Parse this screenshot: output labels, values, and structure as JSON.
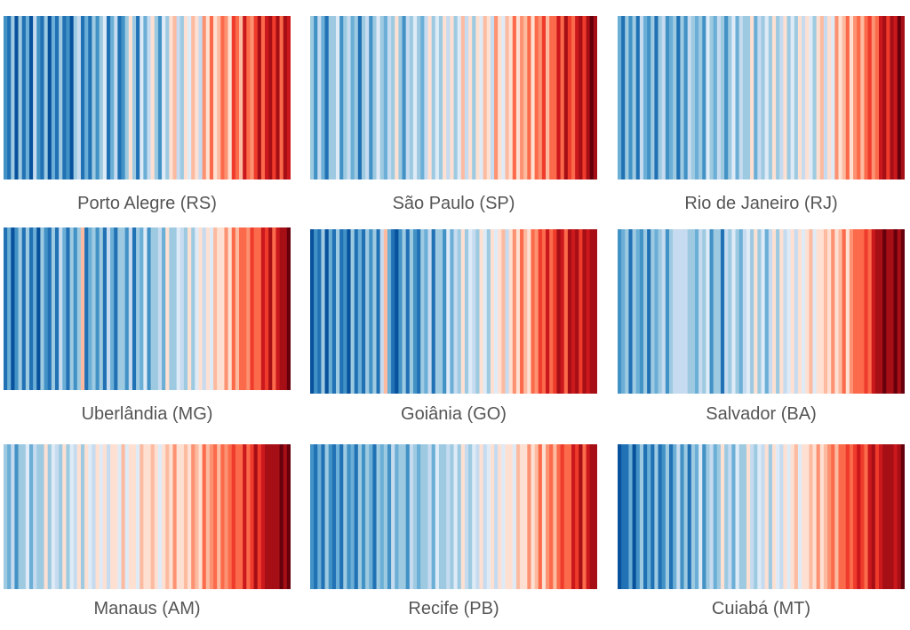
{
  "chart_data": [
    {
      "type": "heatmap",
      "title": "Porto Alegre (RS)",
      "values": [
        0.2,
        0.1,
        0.35,
        0.05,
        0.3,
        0.15,
        0.25,
        0.05,
        0.4,
        0.2,
        0.1,
        0.3,
        0.05,
        0.25,
        0.15,
        0.35,
        0.1,
        0.2,
        0.05,
        0.3,
        0.4,
        0.15,
        0.25,
        0.1,
        0.35,
        0.2,
        0.3,
        0.45,
        0.15,
        0.25,
        0.4,
        0.1,
        0.2,
        0.35,
        0.5,
        0.3,
        0.15,
        0.45,
        0.25,
        0.4,
        0.55,
        0.3,
        0.2,
        0.45,
        0.35,
        0.5,
        0.6,
        0.4,
        0.3,
        0.55,
        0.45,
        0.6,
        0.5,
        0.4,
        0.65,
        0.55,
        0.7,
        0.5,
        0.6,
        0.75,
        0.65,
        0.55,
        0.8,
        0.7,
        0.6,
        0.85,
        0.75,
        0.65,
        0.8,
        0.9,
        0.7,
        0.85,
        0.95,
        0.8,
        0.9,
        0.75,
        0.95,
        0.85
      ]
    },
    {
      "type": "heatmap",
      "title": "São Paulo (SP)",
      "values": [
        0.3,
        0.2,
        0.4,
        0.25,
        0.15,
        0.35,
        0.3,
        0.45,
        0.2,
        0.3,
        0.4,
        0.25,
        0.35,
        0.15,
        0.3,
        0.4,
        0.2,
        0.35,
        0.45,
        0.3,
        0.25,
        0.4,
        0.3,
        0.5,
        0.35,
        0.2,
        0.4,
        0.3,
        0.45,
        0.35,
        0.25,
        0.4,
        0.5,
        0.3,
        0.45,
        0.35,
        0.5,
        0.4,
        0.55,
        0.3,
        0.45,
        0.6,
        0.4,
        0.5,
        0.35,
        0.55,
        0.45,
        0.6,
        0.5,
        0.4,
        0.65,
        0.5,
        0.45,
        0.6,
        0.55,
        0.7,
        0.5,
        0.65,
        0.6,
        0.75,
        0.55,
        0.7,
        0.65,
        0.8,
        0.6,
        0.75,
        0.7,
        0.85,
        0.75,
        0.9,
        0.8,
        0.7,
        0.85,
        0.95,
        0.8,
        0.9,
        1.0,
        0.95
      ]
    },
    {
      "type": "heatmap",
      "title": "Rio de Janeiro (RJ)",
      "values": [
        0.25,
        0.15,
        0.35,
        0.2,
        0.3,
        0.1,
        0.4,
        0.25,
        0.2,
        0.35,
        0.15,
        0.3,
        0.4,
        0.2,
        0.25,
        0.35,
        0.15,
        0.3,
        0.2,
        0.4,
        0.3,
        0.25,
        0.35,
        0.2,
        0.45,
        0.3,
        0.25,
        0.4,
        0.35,
        0.2,
        0.3,
        0.45,
        0.25,
        0.4,
        0.35,
        0.3,
        0.5,
        0.25,
        0.4,
        0.3,
        0.45,
        0.35,
        0.55,
        0.3,
        0.4,
        0.5,
        0.35,
        0.45,
        0.3,
        0.5,
        0.4,
        0.55,
        0.45,
        0.35,
        0.5,
        0.6,
        0.4,
        0.55,
        0.45,
        0.65,
        0.5,
        0.6,
        0.7,
        0.55,
        0.65,
        0.75,
        0.6,
        0.7,
        0.8,
        0.65,
        0.75,
        0.85,
        0.9,
        0.8,
        0.95,
        0.85,
        1.0,
        0.9
      ]
    },
    {
      "type": "heatmap",
      "title": "Uberlândia (MG)",
      "values": [
        0.1,
        0.25,
        0.05,
        0.2,
        0.35,
        0.1,
        0.3,
        0.15,
        0.25,
        0.05,
        0.35,
        0.2,
        0.1,
        0.3,
        0.15,
        0.4,
        0.25,
        0.1,
        0.35,
        0.2,
        0.3,
        0.6,
        0.15,
        0.25,
        0.35,
        0.2,
        0.3,
        0.1,
        0.4,
        0.25,
        0.15,
        0.35,
        0.3,
        0.2,
        0.4,
        0.1,
        0.3,
        0.25,
        0.45,
        0.2,
        0.35,
        0.3,
        0.4,
        0.25,
        0.5,
        0.35,
        0.3,
        0.45,
        0.4,
        0.35,
        0.5,
        0.3,
        0.45,
        0.55,
        0.4,
        0.5,
        0.45,
        0.6,
        0.5,
        0.55,
        0.65,
        0.5,
        0.7,
        0.6,
        0.75,
        0.7,
        0.65,
        0.8,
        0.75,
        0.7,
        0.85,
        0.8,
        0.9,
        0.75,
        0.85,
        0.95,
        0.9,
        1.0
      ]
    },
    {
      "type": "heatmap",
      "title": "Goiânia (GO)",
      "values": [
        0.05,
        0.2,
        0.1,
        0.3,
        0.05,
        0.25,
        0.15,
        0.35,
        0.1,
        0.2,
        0.05,
        0.3,
        0.15,
        0.25,
        0.1,
        0.35,
        0.2,
        0.3,
        0.15,
        0.4,
        0.6,
        0.25,
        0.1,
        0.05,
        0.2,
        0.3,
        0.15,
        0.35,
        0.2,
        0.1,
        0.3,
        0.25,
        0.4,
        0.15,
        0.35,
        0.3,
        0.2,
        0.45,
        0.25,
        0.4,
        0.3,
        0.5,
        0.35,
        0.45,
        0.4,
        0.3,
        0.5,
        0.45,
        0.35,
        0.55,
        0.45,
        0.5,
        0.6,
        0.4,
        0.55,
        0.65,
        0.5,
        0.7,
        0.6,
        0.55,
        0.75,
        0.65,
        0.8,
        0.7,
        0.85,
        0.75,
        0.8,
        0.9,
        0.85,
        0.75,
        0.9,
        0.85,
        0.95,
        0.8,
        0.9,
        0.85,
        0.95,
        0.9
      ]
    },
    {
      "type": "heatmap",
      "title": "Salvador (BA)",
      "values": [
        0.2,
        0.25,
        0.3,
        0.15,
        0.35,
        0.25,
        0.2,
        0.3,
        0.1,
        0.35,
        0.25,
        0.3,
        0.4,
        0.2,
        0.35,
        0.4,
        0.4,
        0.4,
        0.4,
        0.3,
        0.35,
        0.25,
        0.4,
        0.3,
        0.45,
        0.2,
        0.35,
        0.3,
        0.15,
        0.4,
        0.3,
        0.45,
        0.35,
        0.25,
        0.4,
        0.45,
        0.3,
        0.5,
        0.35,
        0.45,
        0.25,
        0.4,
        0.5,
        0.35,
        0.55,
        0.4,
        0.45,
        0.5,
        0.4,
        0.55,
        0.45,
        0.5,
        0.6,
        0.45,
        0.55,
        0.5,
        0.6,
        0.55,
        0.65,
        0.5,
        0.6,
        0.7,
        0.55,
        0.65,
        0.75,
        0.75,
        0.7,
        0.8,
        0.75,
        0.85,
        0.95,
        0.9,
        1.0,
        0.95,
        0.9,
        1.0,
        0.95,
        1.0
      ]
    },
    {
      "type": "heatmap",
      "title": "Manaus (AM)",
      "values": [
        0.3,
        0.25,
        0.4,
        0.2,
        0.35,
        0.3,
        0.45,
        0.25,
        0.4,
        0.3,
        0.35,
        0.5,
        0.3,
        0.45,
        0.4,
        0.35,
        0.5,
        0.3,
        0.45,
        0.4,
        0.55,
        0.35,
        0.5,
        0.45,
        0.4,
        0.55,
        0.45,
        0.5,
        0.4,
        0.55,
        0.5,
        0.45,
        0.6,
        0.45,
        0.55,
        0.5,
        0.45,
        0.6,
        0.5,
        0.55,
        0.6,
        0.5,
        0.45,
        0.55,
        0.6,
        0.5,
        0.65,
        0.55,
        0.5,
        0.6,
        0.55,
        0.65,
        0.6,
        0.55,
        0.7,
        0.6,
        0.65,
        0.7,
        0.6,
        0.75,
        0.65,
        0.7,
        0.8,
        0.7,
        0.75,
        0.85,
        0.75,
        0.8,
        0.9,
        0.8,
        0.85,
        0.9,
        0.95,
        0.9,
        0.95,
        1.0,
        0.95,
        1.0
      ]
    },
    {
      "type": "heatmap",
      "title": "Recife (PB)",
      "values": [
        0.2,
        0.1,
        0.25,
        0.15,
        0.3,
        0.2,
        0.15,
        0.25,
        0.1,
        0.3,
        0.2,
        0.25,
        0.15,
        0.35,
        0.2,
        0.3,
        0.25,
        0.15,
        0.35,
        0.25,
        0.3,
        0.2,
        0.4,
        0.25,
        0.3,
        0.35,
        0.2,
        0.4,
        0.3,
        0.25,
        0.35,
        0.3,
        0.4,
        0.25,
        0.45,
        0.35,
        0.3,
        0.4,
        0.35,
        0.45,
        0.3,
        0.5,
        0.4,
        0.35,
        0.45,
        0.4,
        0.5,
        0.4,
        0.45,
        0.55,
        0.4,
        0.5,
        0.45,
        0.55,
        0.5,
        0.45,
        0.6,
        0.5,
        0.55,
        0.65,
        0.5,
        0.6,
        0.7,
        0.55,
        0.65,
        0.75,
        0.6,
        0.7,
        0.8,
        0.75,
        0.7,
        0.85,
        0.8,
        0.9,
        0.75,
        0.85,
        0.95,
        0.9
      ]
    },
    {
      "type": "heatmap",
      "title": "Cuiabá (MT)",
      "values": [
        0.05,
        0.15,
        0.1,
        0.25,
        0.05,
        0.2,
        0.3,
        0.1,
        0.25,
        0.15,
        0.35,
        0.1,
        0.2,
        0.3,
        0.15,
        0.25,
        0.4,
        0.2,
        0.3,
        0.1,
        0.35,
        0.25,
        0.45,
        0.2,
        0.3,
        0.4,
        0.25,
        0.35,
        0.5,
        0.3,
        0.4,
        0.25,
        0.45,
        0.35,
        0.3,
        0.5,
        0.4,
        0.35,
        0.45,
        0.4,
        0.5,
        0.35,
        0.55,
        0.45,
        0.4,
        0.5,
        0.45,
        0.55,
        0.6,
        0.45,
        0.55,
        0.5,
        0.6,
        0.55,
        0.65,
        0.5,
        0.6,
        0.65,
        0.7,
        0.6,
        0.75,
        0.7,
        0.8,
        0.75,
        0.8,
        0.85,
        0.8,
        0.75,
        0.85,
        0.9,
        0.8,
        0.85,
        0.9,
        0.95,
        0.9,
        0.85,
        0.95,
        1.0
      ]
    }
  ],
  "colors": {
    "scale": [
      "#08306b",
      "#08519c",
      "#2171b5",
      "#4292c6",
      "#6baed6",
      "#9ecae1",
      "#c6dbef",
      "#deebf7",
      "#fee0d2",
      "#fcbba1",
      "#fc9272",
      "#fb6a4a",
      "#ef3b2c",
      "#cb181d",
      "#a50f15",
      "#67000d"
    ],
    "label_text": "#555555"
  }
}
